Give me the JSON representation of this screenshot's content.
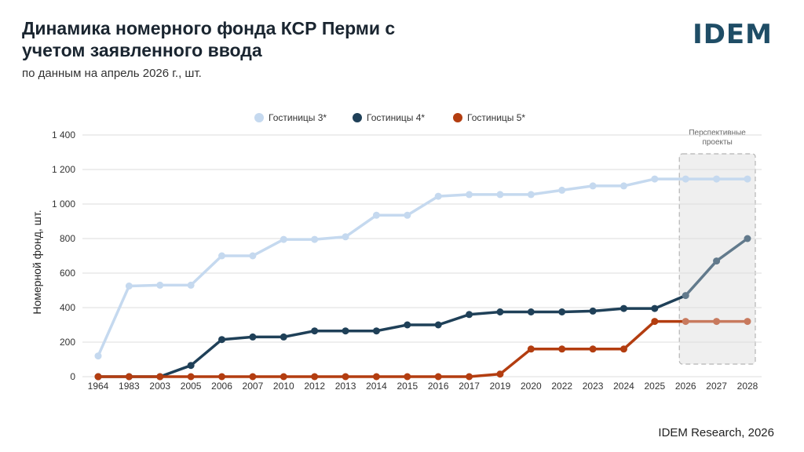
{
  "header": {
    "title": "Динамика номерного фонда КСР Перми с учетом заявленного ввода",
    "subtitle": "по данным на апрель 2026 г., шт.",
    "logo": "IDEM"
  },
  "footer": {
    "source": "IDEM Research, 2026"
  },
  "chart_data": {
    "type": "line",
    "categories": [
      "1964",
      "1983",
      "2003",
      "2005",
      "2006",
      "2007",
      "2010",
      "2012",
      "2013",
      "2014",
      "2015",
      "2016",
      "2017",
      "2019",
      "2020",
      "2022",
      "2023",
      "2024",
      "2025",
      "2026",
      "2027",
      "2028"
    ],
    "series": [
      {
        "name": "Гостиницы 3*",
        "color": "#c5d9ef",
        "color_projected": "#c5d9ef",
        "values": [
          120,
          525,
          530,
          530,
          700,
          700,
          795,
          795,
          810,
          935,
          935,
          1045,
          1055,
          1055,
          1055,
          1080,
          1105,
          1105,
          1145,
          1145,
          1145,
          1145
        ]
      },
      {
        "name": "Гостиницы 4*",
        "color": "#1f4058",
        "color_projected": "#627a8c",
        "values": [
          0,
          0,
          0,
          65,
          215,
          230,
          230,
          265,
          265,
          265,
          300,
          300,
          360,
          375,
          375,
          375,
          380,
          395,
          395,
          470,
          670,
          800
        ]
      },
      {
        "name": "Гостиницы 5*",
        "color": "#b33d10",
        "color_projected": "#c87a5e",
        "values": [
          0,
          0,
          0,
          0,
          0,
          0,
          0,
          0,
          0,
          0,
          0,
          0,
          0,
          15,
          160,
          160,
          160,
          160,
          320,
          320,
          320,
          320
        ]
      }
    ],
    "ylabel": "Номерной фонд, шт.",
    "ylim": [
      0,
      1400
    ],
    "yticks": [
      0,
      200,
      400,
      600,
      800,
      1000,
      1200,
      1400
    ],
    "ytick_labels": [
      "0",
      "200",
      "400",
      "600",
      "800",
      "1 000",
      "1 200",
      "1 400"
    ],
    "grid": true,
    "legend_position": "top-center",
    "projected_from_category": "2026",
    "projected_label_line1": "Перспективные",
    "projected_label_line2": "проекты"
  }
}
